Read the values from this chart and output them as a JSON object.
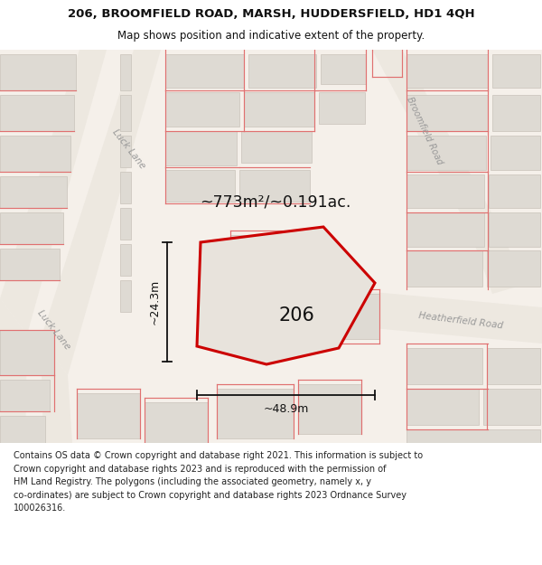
{
  "title": "206, BROOMFIELD ROAD, MARSH, HUDDERSFIELD, HD1 4QH",
  "subtitle": "Map shows position and indicative extent of the property.",
  "footer_line1": "Contains OS data © Crown copyright and database right 2021. This information is subject to",
  "footer_line2": "Crown copyright and database rights 2023 and is reproduced with the permission of",
  "footer_line3": "HM Land Registry. The polygons (including the associated geometry, namely x, y",
  "footer_line4": "co-ordinates) are subject to Crown copyright and database rights 2023 Ordnance Survey",
  "footer_line5": "100026316.",
  "area_label": "~773m²/~0.191ac.",
  "width_label": "~48.9m",
  "height_label": "~24.3m",
  "plot_number": "206",
  "map_bg": "#f5f0ea",
  "road_surface": "#ede8e1",
  "building_fill": "#dedad3",
  "building_edge": "#c8c2ba",
  "plot_fill": "#e8e3dc",
  "plot_edge": "#cc0000",
  "cadastral_color": "#e07070",
  "street_color": "#999999",
  "title_color": "#111111",
  "measure_color": "#111111",
  "white": "#ffffff"
}
